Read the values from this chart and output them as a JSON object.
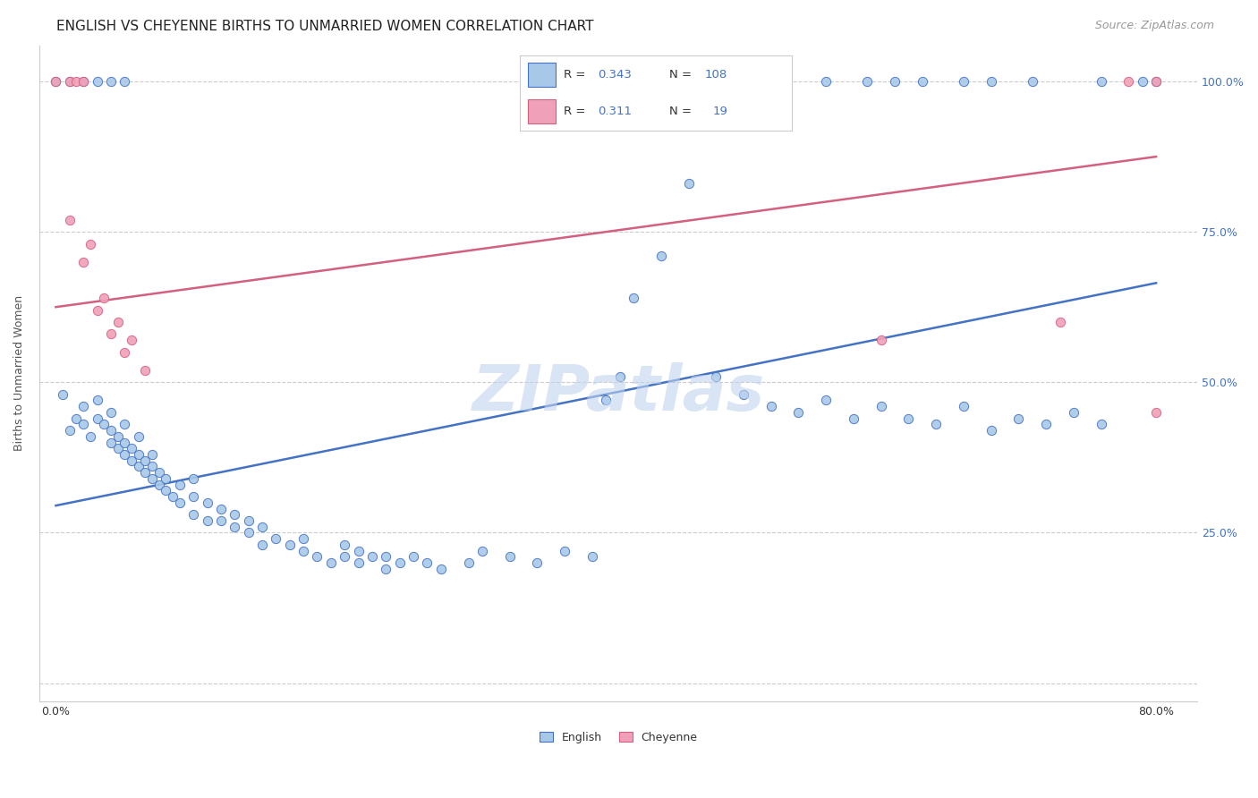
{
  "title": "ENGLISH VS CHEYENNE BIRTHS TO UNMARRIED WOMEN CORRELATION CHART",
  "source": "Source: ZipAtlas.com",
  "ylabel": "Births to Unmarried Women",
  "english_color": "#a8c8e8",
  "cheyenne_color": "#f0a0b8",
  "english_line_color": "#4472c4",
  "cheyenne_line_color": "#d46080",
  "english_R": 0.343,
  "english_N": 108,
  "cheyenne_R": 0.311,
  "cheyenne_N": 19,
  "legend_label_color": "#4472c4",
  "watermark": "ZIPatlas",
  "xlim": [
    0.0,
    0.8
  ],
  "ylim": [
    0.0,
    1.0
  ],
  "english_trendline_x": [
    0.0,
    0.8
  ],
  "english_trendline_y": [
    0.295,
    0.665
  ],
  "cheyenne_trendline_x": [
    0.0,
    0.8
  ],
  "cheyenne_trendline_y": [
    0.625,
    0.875
  ],
  "background_color": "#ffffff",
  "grid_color": "#cccccc",
  "title_fontsize": 11,
  "source_fontsize": 9,
  "label_fontsize": 9,
  "tick_fontsize": 9,
  "watermark_color": "#c0d4ee",
  "watermark_fontsize": 52,
  "english_x": [
    0.005,
    0.01,
    0.015,
    0.02,
    0.02,
    0.025,
    0.03,
    0.03,
    0.035,
    0.04,
    0.04,
    0.04,
    0.045,
    0.045,
    0.05,
    0.05,
    0.05,
    0.055,
    0.055,
    0.06,
    0.06,
    0.06,
    0.065,
    0.065,
    0.07,
    0.07,
    0.07,
    0.075,
    0.075,
    0.08,
    0.08,
    0.085,
    0.09,
    0.09,
    0.1,
    0.1,
    0.1,
    0.11,
    0.11,
    0.12,
    0.12,
    0.13,
    0.13,
    0.14,
    0.14,
    0.15,
    0.15,
    0.16,
    0.17,
    0.18,
    0.18,
    0.19,
    0.2,
    0.21,
    0.21,
    0.22,
    0.22,
    0.23,
    0.24,
    0.24,
    0.25,
    0.26,
    0.27,
    0.28,
    0.3,
    0.31,
    0.33,
    0.35,
    0.37,
    0.39,
    0.4,
    0.41,
    0.42,
    0.44,
    0.46,
    0.48,
    0.5,
    0.52,
    0.54,
    0.56,
    0.58,
    0.6,
    0.62,
    0.64,
    0.66,
    0.68,
    0.7,
    0.72,
    0.74,
    0.76,
    0.0,
    0.01,
    0.02,
    0.03,
    0.04,
    0.05,
    0.39,
    0.42,
    0.56,
    0.59,
    0.61,
    0.63,
    0.66,
    0.68,
    0.71,
    0.76,
    0.79,
    0.8
  ],
  "english_y": [
    0.48,
    0.42,
    0.44,
    0.43,
    0.46,
    0.41,
    0.44,
    0.47,
    0.43,
    0.4,
    0.42,
    0.45,
    0.39,
    0.41,
    0.38,
    0.4,
    0.43,
    0.37,
    0.39,
    0.36,
    0.38,
    0.41,
    0.35,
    0.37,
    0.34,
    0.36,
    0.38,
    0.33,
    0.35,
    0.32,
    0.34,
    0.31,
    0.3,
    0.33,
    0.28,
    0.31,
    0.34,
    0.27,
    0.3,
    0.27,
    0.29,
    0.26,
    0.28,
    0.25,
    0.27,
    0.23,
    0.26,
    0.24,
    0.23,
    0.22,
    0.24,
    0.21,
    0.2,
    0.21,
    0.23,
    0.2,
    0.22,
    0.21,
    0.19,
    0.21,
    0.2,
    0.21,
    0.2,
    0.19,
    0.2,
    0.22,
    0.21,
    0.2,
    0.22,
    0.21,
    0.47,
    0.51,
    0.64,
    0.71,
    0.83,
    0.51,
    0.48,
    0.46,
    0.45,
    0.47,
    0.44,
    0.46,
    0.44,
    0.43,
    0.46,
    0.42,
    0.44,
    0.43,
    0.45,
    0.43,
    1.0,
    1.0,
    1.0,
    1.0,
    1.0,
    1.0,
    1.0,
    1.0,
    1.0,
    1.0,
    1.0,
    1.0,
    1.0,
    1.0,
    1.0,
    1.0,
    1.0,
    1.0
  ],
  "cheyenne_x": [
    0.01,
    0.02,
    0.025,
    0.03,
    0.035,
    0.04,
    0.045,
    0.05,
    0.055,
    0.065,
    0.0,
    0.01,
    0.015,
    0.02,
    0.6,
    0.73,
    0.78,
    0.8,
    0.8
  ],
  "cheyenne_y": [
    0.77,
    0.7,
    0.73,
    0.62,
    0.64,
    0.58,
    0.6,
    0.55,
    0.57,
    0.52,
    1.0,
    1.0,
    1.0,
    1.0,
    0.57,
    0.6,
    1.0,
    0.45,
    1.0
  ]
}
